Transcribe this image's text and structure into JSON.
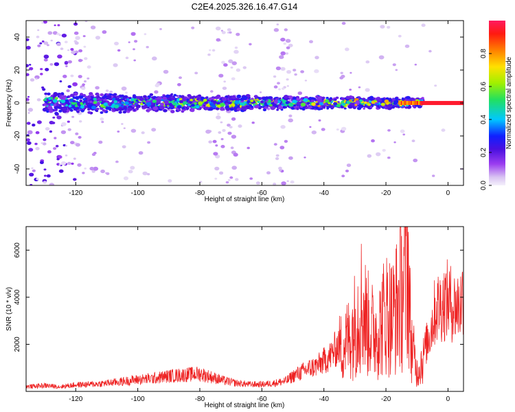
{
  "title": "C2E4.2025.326.16.47.G14",
  "colors": {
    "snr_line": "#ee2222",
    "axis": "#000000",
    "background": "#ffffff"
  },
  "chart_data": [
    {
      "type": "heatmap",
      "name": "spectrogram",
      "xlabel": "Height of straight line (km)",
      "ylabel": "Frequency (Hz)",
      "xlim": [
        -136,
        5
      ],
      "ylim": [
        -50,
        50
      ],
      "x_ticks": [
        -120,
        -100,
        -80,
        -60,
        -40,
        -20,
        0
      ],
      "x_tick_labels": [
        "-120",
        "-100",
        "-80",
        "-60",
        "-40",
        "-20",
        "0"
      ],
      "y_ticks": [
        -40,
        -20,
        0,
        20,
        40
      ],
      "y_tick_labels": [
        "-40",
        "-20",
        "0",
        "20",
        "40"
      ],
      "signal_band": {
        "center_hz": 0,
        "half_width_hz": 6
      },
      "colorbar": {
        "label": "Normalized spectral amplitude",
        "range": [
          0,
          1
        ],
        "ticks": [
          0.0,
          0.2,
          0.4,
          0.6,
          0.8
        ],
        "tick_labels": [
          "0.0",
          "0.2",
          "0.4",
          "0.6",
          "0.8"
        ],
        "colormap": "rainbow"
      }
    },
    {
      "type": "line",
      "name": "snr",
      "xlabel": "Height of straight line (km)",
      "ylabel": "SNR (10 * v/v)",
      "xlim": [
        -136,
        5
      ],
      "ylim": [
        0,
        7000
      ],
      "x_ticks": [
        -120,
        -100,
        -80,
        -60,
        -40,
        -20,
        0
      ],
      "x_tick_labels": [
        "-120",
        "-100",
        "-80",
        "-60",
        "-40",
        "-20",
        "0"
      ],
      "y_ticks": [
        2000,
        4000,
        6000
      ],
      "y_tick_labels": [
        "2000",
        "4000",
        "6000"
      ],
      "series": [
        {
          "name": "SNR",
          "x": [
            -136,
            -130,
            -125,
            -120,
            -115,
            -110,
            -105,
            -100,
            -95,
            -90,
            -85,
            -80,
            -76,
            -72,
            -68,
            -64,
            -60,
            -56,
            -52,
            -50,
            -46,
            -42,
            -38,
            -35,
            -32,
            -30,
            -28,
            -26,
            -24,
            -22,
            -20,
            -18,
            -16,
            -14,
            -13,
            -12,
            -10,
            -8,
            -6,
            -4,
            -2,
            0,
            2,
            4,
            5
          ],
          "y": [
            200,
            250,
            200,
            280,
            300,
            350,
            420,
            500,
            550,
            650,
            700,
            750,
            600,
            450,
            350,
            300,
            300,
            350,
            450,
            650,
            900,
            1100,
            1500,
            2000,
            2500,
            3200,
            4200,
            3200,
            2800,
            3000,
            3800,
            3500,
            4200,
            5200,
            6500,
            2500,
            900,
            1600,
            2400,
            3500,
            3700,
            3900,
            3600,
            3700,
            4200
          ]
        }
      ]
    }
  ]
}
